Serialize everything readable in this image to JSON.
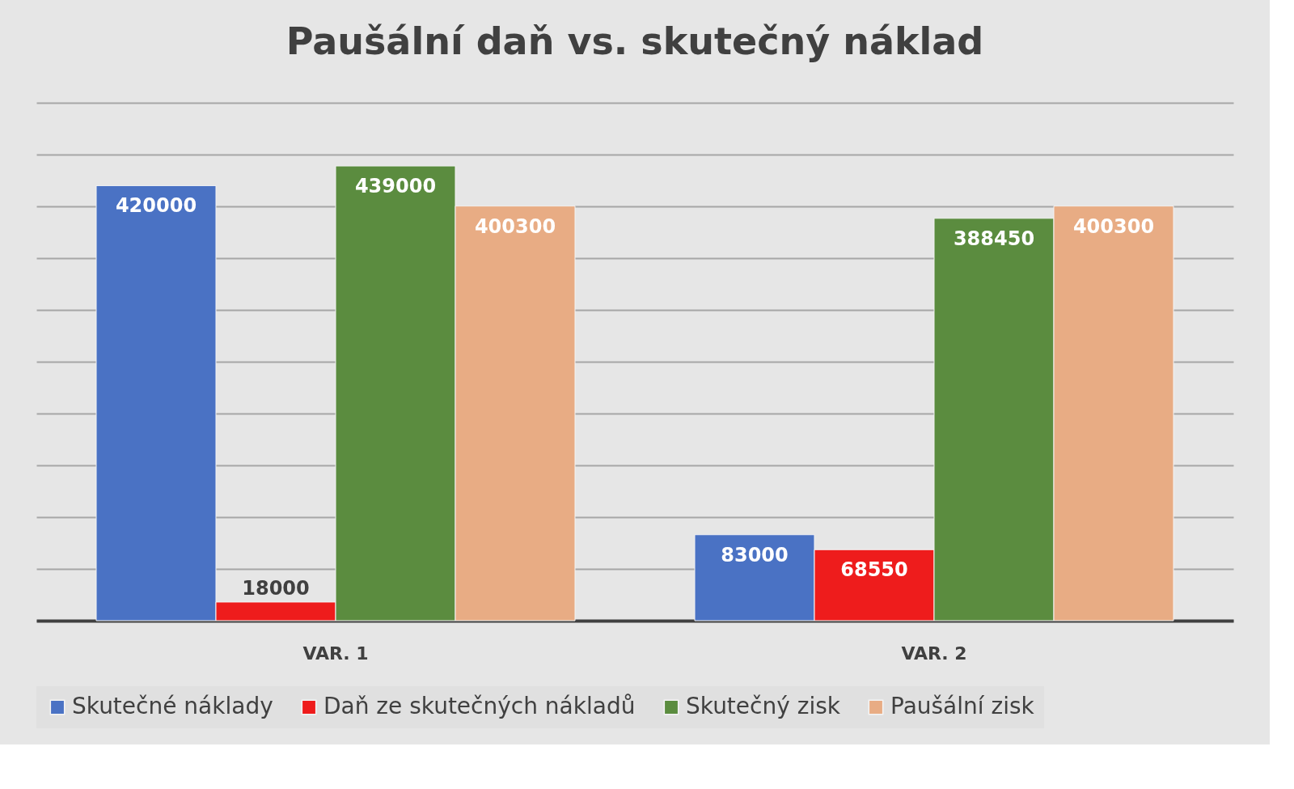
{
  "chart_data": {
    "type": "bar",
    "title": "Paušální daň vs. skutečný náklad",
    "categories": [
      "VAR. 1",
      "VAR. 2"
    ],
    "series": [
      {
        "name": "Skutečné náklady",
        "color": "#4a72c4",
        "values": [
          420000,
          83000
        ]
      },
      {
        "name": "Daň ze skutečných nákladů",
        "color": "#ee1c1c",
        "values": [
          18000,
          68550
        ]
      },
      {
        "name": "Skutečný zisk",
        "color": "#5b8c3f",
        "values": [
          439000,
          388450
        ]
      },
      {
        "name": "Paušální zisk",
        "color": "#e8ac84",
        "values": [
          400300,
          400300
        ]
      }
    ],
    "ylim": [
      0,
      500000
    ],
    "yticks": [
      {
        "value": 0,
        "label": null
      },
      {
        "value": 50000,
        "label": null
      },
      {
        "value": 100000,
        "label": null
      },
      {
        "value": 150000,
        "label": null
      },
      {
        "value": 200000,
        "label": null
      },
      {
        "value": 250000,
        "label": null
      },
      {
        "value": 300000,
        "label": null
      },
      {
        "value": 350000,
        "label": null
      },
      {
        "value": 400000,
        "label": null
      },
      {
        "value": 450000,
        "label": null
      },
      {
        "value": 500000,
        "label": null
      }
    ],
    "tick_labels": "x",
    "grid": "y",
    "legend": "bottom",
    "data_labels": true
  }
}
